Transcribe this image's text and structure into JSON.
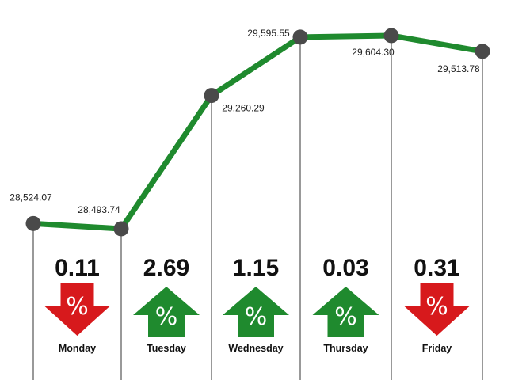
{
  "chart_data": {
    "type": "line",
    "categories": [
      "Monday",
      "Tuesday",
      "Wednesday",
      "Thursday",
      "Friday"
    ],
    "x_labels": [
      "Monday",
      "Tuesday",
      "Wednesday",
      "Thursday",
      "Friday"
    ],
    "points": [
      {
        "value": 28524.07,
        "label": "28,524.07"
      },
      {
        "value": 28493.74,
        "label": "28,493.74"
      },
      {
        "value": 29260.29,
        "label": "29,260.29"
      },
      {
        "value": 29595.55,
        "label": "29,595.55"
      },
      {
        "value": 29604.3,
        "label": "29,604.30"
      },
      {
        "value": 29513.78,
        "label": "29,513.78"
      }
    ],
    "daily_changes": [
      {
        "day": "Monday",
        "percent": "0.11",
        "direction": "down"
      },
      {
        "day": "Tuesday",
        "percent": "2.69",
        "direction": "up"
      },
      {
        "day": "Wednesday",
        "percent": "1.15",
        "direction": "up"
      },
      {
        "day": "Thursday",
        "percent": "0.03",
        "direction": "up"
      },
      {
        "day": "Friday",
        "percent": "0.31",
        "direction": "down"
      }
    ],
    "arrow_symbol": "%",
    "colors": {
      "line": "#1f8a2e",
      "marker": "#4a4a4a",
      "up": "#1f8a2e",
      "down": "#d7191c",
      "divider": "#333333"
    },
    "grid": false,
    "legend": "none"
  }
}
